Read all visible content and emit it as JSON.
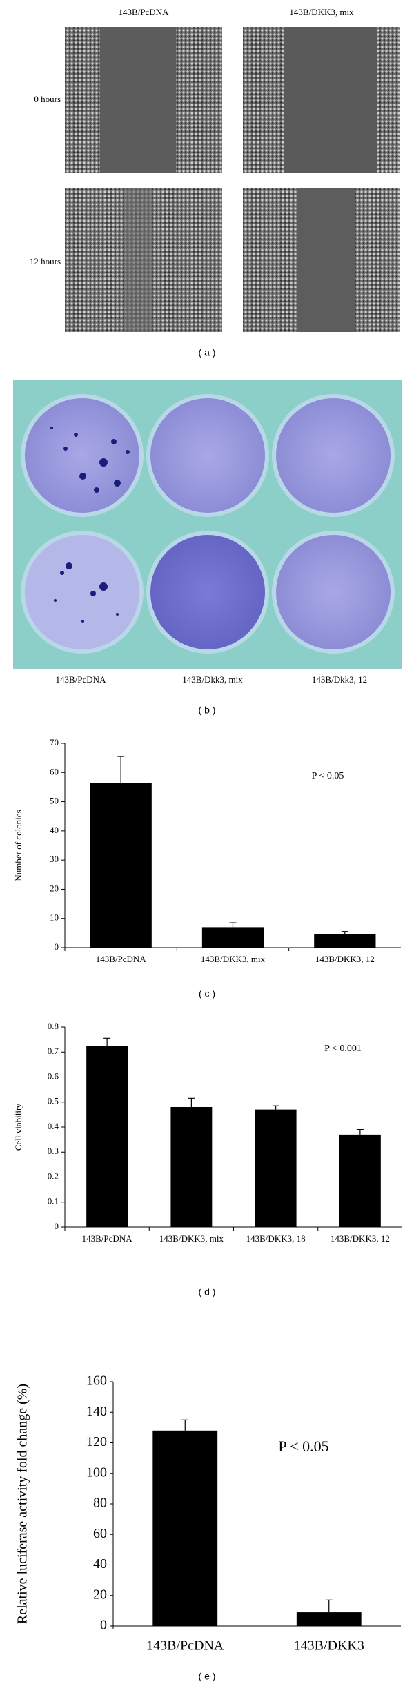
{
  "panel_a": {
    "columns": [
      "143B/PcDNA",
      "143B/DKK3, mix"
    ],
    "rows": [
      "0 hours",
      "12 hours"
    ],
    "caption": "( a )"
  },
  "panel_b": {
    "labels": [
      "143B/PcDNA",
      "143B/Dkk3, mix",
      "143B/Dkk3, 12"
    ],
    "caption": "( b )"
  },
  "chart_data": [
    {
      "type": "bar",
      "caption": "( c )",
      "y_label": "Number of colonies",
      "annotation": "P < 0.05",
      "categories": [
        "143B/PcDNA",
        "143B/DKK3, mix",
        "143B/DKK3, 12"
      ],
      "values": [
        56.5,
        7,
        4.5
      ],
      "errors": [
        9,
        1.5,
        1
      ],
      "color": "#000000",
      "ylim": [
        0,
        70
      ],
      "yticks": [
        0,
        10,
        20,
        30,
        40,
        50,
        60,
        70
      ]
    },
    {
      "type": "bar",
      "caption": "( d )",
      "y_label": "Cell viability",
      "annotation": "P < 0.001",
      "categories": [
        "143B/PcDNA",
        "143B/DKK3, mix",
        "143B/DKK3, 18",
        "143B/DKK3, 12"
      ],
      "values": [
        0.725,
        0.48,
        0.47,
        0.37
      ],
      "errors": [
        0.03,
        0.035,
        0.015,
        0.02
      ],
      "color": "#000000",
      "ylim": [
        0,
        0.8
      ],
      "yticks": [
        0,
        0.1,
        0.2,
        0.3,
        0.4,
        0.5,
        0.6,
        0.7,
        0.8
      ]
    },
    {
      "type": "bar",
      "caption": "( e )",
      "y_label": "Relative luciferase activity fold change (%)",
      "annotation": "P < 0.05",
      "categories": [
        "143B/PcDNA",
        "143B/DKK3"
      ],
      "values": [
        128,
        9
      ],
      "errors": [
        7,
        8
      ],
      "color": "#000000",
      "ylim": [
        0,
        160
      ],
      "yticks": [
        0,
        20,
        40,
        60,
        80,
        100,
        120,
        140,
        160
      ]
    }
  ]
}
